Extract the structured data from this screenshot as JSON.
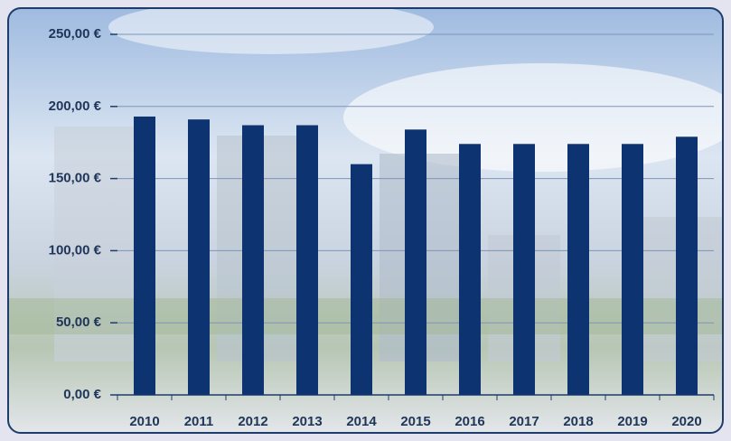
{
  "chart_data": {
    "type": "bar",
    "categories": [
      "2010",
      "2011",
      "2012",
      "2013",
      "2014",
      "2015",
      "2016",
      "2017",
      "2018",
      "2019",
      "2020"
    ],
    "values": [
      193,
      191,
      187,
      187,
      160,
      184,
      174,
      174,
      174,
      174,
      179
    ],
    "color": "#0d3470",
    "ylim": [
      0,
      250
    ],
    "yticks": [
      {
        "value": 0,
        "label": "0,00 €"
      },
      {
        "value": 50,
        "label": "50,00 €"
      },
      {
        "value": 100,
        "label": "100,00 €"
      },
      {
        "value": 150,
        "label": "150,00 €"
      },
      {
        "value": 200,
        "label": "200,00 €"
      },
      {
        "value": 250,
        "label": "250,00 €"
      }
    ],
    "grid": true
  }
}
